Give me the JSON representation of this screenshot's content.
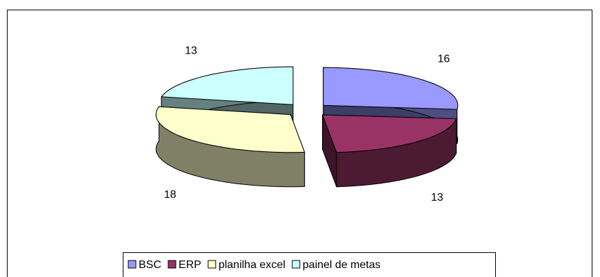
{
  "chart_data": {
    "type": "pie3d",
    "categories": [
      "BSC",
      "ERP",
      "planilha excel",
      "painel de metas"
    ],
    "values": [
      16,
      13,
      18,
      13
    ],
    "colors": [
      "#9999FF",
      "#993366",
      "#FFFFCC",
      "#CCFFFF"
    ],
    "legend": "bottom"
  }
}
